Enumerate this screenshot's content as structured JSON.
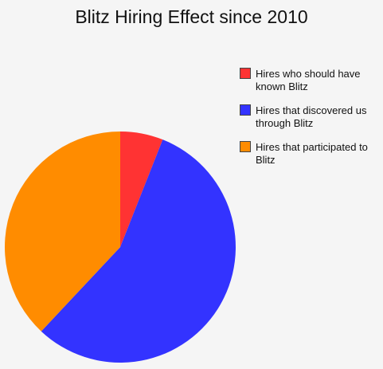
{
  "chart_data": {
    "type": "pie",
    "title": "Blitz Hiring Effect since 2010",
    "slices": [
      {
        "label": "Hires who should have known Blitz",
        "value": 6,
        "color": "#ff3333"
      },
      {
        "label": "Hires that discovered us through Blitz",
        "value": 56,
        "color": "#3333ff"
      },
      {
        "label": "Hires that participated to Blitz",
        "value": 38,
        "color": "#ff8c00"
      }
    ],
    "start_angle_deg": 0,
    "direction": "clockwise",
    "legend_position": "right"
  }
}
